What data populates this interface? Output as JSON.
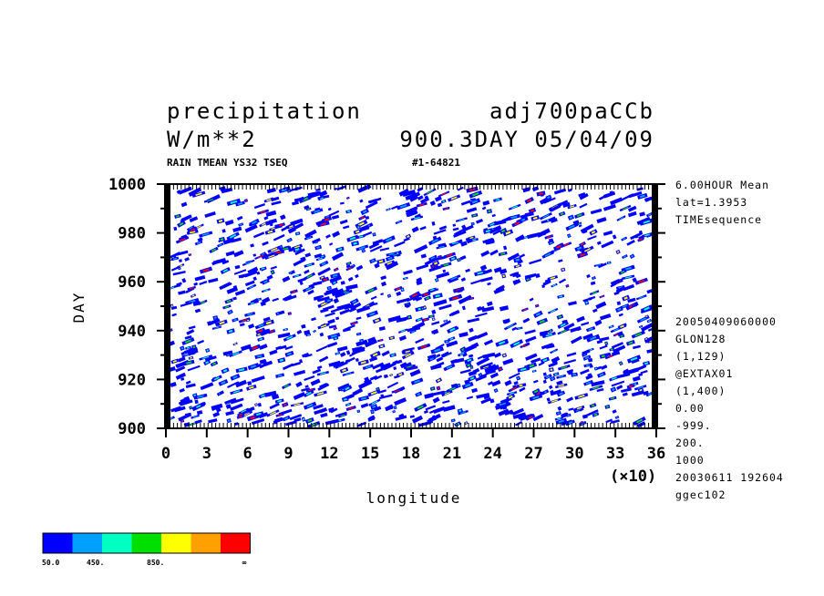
{
  "chart_data": {
    "type": "heatmap",
    "title_left": "precipitation",
    "title_right": "adj700paCCb",
    "units": "W/m**2",
    "title_info": "900.3DAY 05/04/09",
    "subtitle": "RAIN TMEAN YS32 TSEQ",
    "subtitle_id": "#1-64821",
    "xlabel": "longitude",
    "ylabel": "DAY",
    "x_multiplier": "(×10)",
    "xlim": [
      0,
      36
    ],
    "ylim": [
      900,
      1000
    ],
    "x_ticks": [
      "0",
      "3",
      "6",
      "9",
      "12",
      "15",
      "18",
      "21",
      "24",
      "27",
      "30",
      "33",
      "36"
    ],
    "y_ticks": [
      "900",
      "920",
      "940",
      "960",
      "980",
      "1000"
    ],
    "right_info_top": [
      "6.00HOUR Mean",
      "lat=1.3953",
      "TIMEsequence"
    ],
    "right_info_bottom": [
      "20050409060000",
      "GLON128",
      "(1,129)",
      "@EXTAX01",
      "(1,400)",
      "0.00",
      "-999.",
      "200.",
      "1000",
      "20030611 192604",
      "ggec102"
    ],
    "colorbar": {
      "colors": [
        "#0000ff",
        "#00a0ff",
        "#00ffc0",
        "#00e000",
        "#ffff00",
        "#ffa000",
        "#ff0000"
      ],
      "labels": [
        "50.0",
        "450.",
        "850.",
        "∞"
      ]
    }
  }
}
